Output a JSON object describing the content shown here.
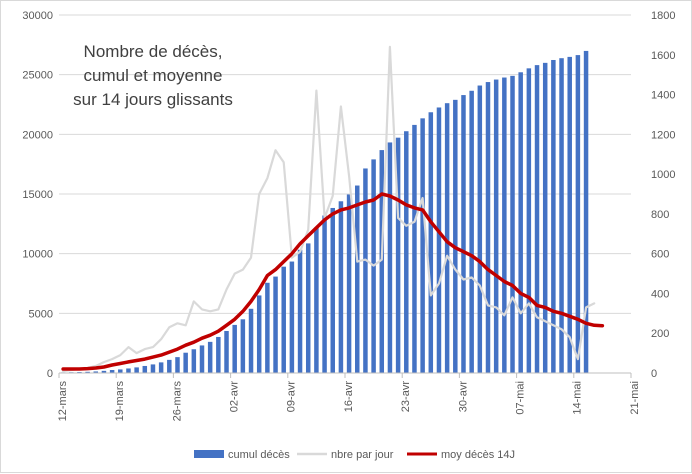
{
  "chart_data": {
    "type": "bar+line",
    "title_lines": [
      "Nombre de décès,",
      "cumul et moyenne",
      "sur 14 jours glissants"
    ],
    "x_ticks": [
      "12-mars",
      "19-mars",
      "26-mars",
      "02-avr",
      "09-avr",
      "16-avr",
      "23-avr",
      "30-avr",
      "07-mai",
      "14-mai",
      "21-mai"
    ],
    "y_left": {
      "min": 0,
      "max": 30000,
      "step": 5000,
      "ticks": [
        "0",
        "5000",
        "10000",
        "15000",
        "20000",
        "25000",
        "30000"
      ]
    },
    "y_right": {
      "min": 0,
      "max": 1800,
      "step": 200,
      "ticks": [
        "0",
        "200",
        "400",
        "600",
        "800",
        "1000",
        "1200",
        "1400",
        "1600",
        "1800"
      ]
    },
    "x_range_days": [
      0,
      70
    ],
    "series": [
      {
        "name": "cumul décès",
        "kind": "bar",
        "axis": "left",
        "color": "#4472C4",
        "start_day": 0,
        "values": [
          50,
          60,
          80,
          100,
          130,
          180,
          250,
          300,
          380,
          470,
          590,
          720,
          890,
          1100,
          1330,
          1700,
          1990,
          2310,
          2610,
          3020,
          3520,
          4030,
          4500,
          5380,
          6500,
          7560,
          8080,
          8910,
          9340,
          10330,
          10860,
          12200,
          13200,
          13830,
          14390,
          14960,
          15710,
          17140,
          17900,
          18680,
          19320,
          19720,
          20260,
          20790,
          21340,
          21850,
          22250,
          22610,
          22890,
          23290,
          23650,
          24090,
          24380,
          24590,
          24760,
          24900,
          25200,
          25530,
          25800,
          25990,
          26230,
          26380,
          26490,
          26640,
          26990
        ]
      },
      {
        "name": "nbre par jour",
        "kind": "line",
        "axis": "right",
        "color": "#D9D9D9",
        "start_day": 0,
        "values": [
          10,
          15,
          20,
          25,
          35,
          55,
          70,
          90,
          130,
          100,
          120,
          130,
          170,
          230,
          250,
          240,
          360,
          320,
          310,
          320,
          420,
          500,
          520,
          580,
          900,
          980,
          1120,
          1060,
          580,
          610,
          720,
          1420,
          780,
          890,
          1340,
          990,
          560,
          570,
          540,
          570,
          1640,
          780,
          740,
          760,
          880,
          390,
          450,
          590,
          520,
          470,
          480,
          440,
          340,
          330,
          290,
          380,
          300,
          350,
          280,
          260,
          240,
          220,
          180,
          70,
          330,
          350
        ]
      },
      {
        "name": "moy décès 14J",
        "kind": "line",
        "axis": "right",
        "color": "#C00000",
        "start_day": 0,
        "values": [
          20,
          20,
          20,
          22,
          25,
          30,
          40,
          48,
          56,
          63,
          70,
          80,
          90,
          105,
          120,
          140,
          155,
          175,
          190,
          210,
          240,
          270,
          310,
          360,
          420,
          490,
          520,
          560,
          600,
          650,
          690,
          730,
          770,
          800,
          820,
          830,
          845,
          860,
          870,
          900,
          890,
          870,
          845,
          830,
          820,
          760,
          710,
          660,
          630,
          610,
          590,
          560,
          520,
          490,
          460,
          440,
          400,
          380,
          340,
          330,
          310,
          300,
          285,
          270,
          250,
          240,
          238
        ]
      }
    ],
    "legend": {
      "position": "bottom",
      "entries": [
        {
          "label": "cumul décès",
          "color": "#4472C4",
          "symbol": "square"
        },
        {
          "label": "nbre par jour",
          "color": "#D9D9D9",
          "symbol": "line"
        },
        {
          "label": "moy décès 14J",
          "color": "#C00000",
          "symbol": "line"
        }
      ]
    },
    "grid": {
      "horizontal": true,
      "color": "#D9D9D9"
    }
  }
}
